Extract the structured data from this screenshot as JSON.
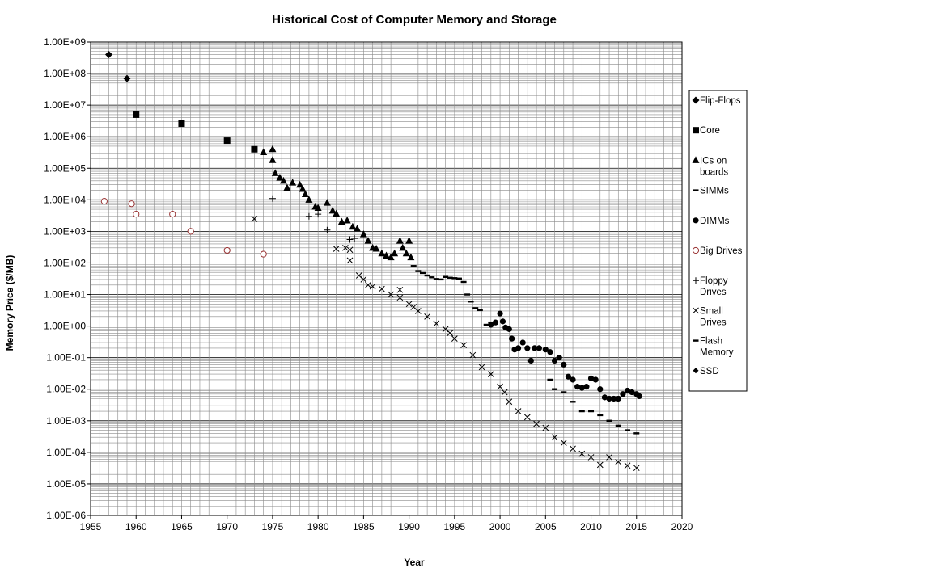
{
  "chart_data": {
    "type": "scatter",
    "title": "Historical Cost of Computer Memory and Storage",
    "xlabel": "Year",
    "ylabel": "Memory Price ($/MB)",
    "xlim": [
      1955,
      2020
    ],
    "ylim": [
      1e-06,
      1000000000.0
    ],
    "y_scale": "log",
    "grid": true,
    "legend_position": "right",
    "x_ticks": [
      "1955",
      "1960",
      "1965",
      "1970",
      "1975",
      "1980",
      "1985",
      "1990",
      "1995",
      "2000",
      "2005",
      "2010",
      "2015",
      "2020"
    ],
    "y_ticks": [
      "1.00E+09",
      "1.00E+08",
      "1.00E+07",
      "1.00E+06",
      "1.00E+05",
      "1.00E+04",
      "1.00E+03",
      "1.00E+02",
      "1.00E+01",
      "1.00E+00",
      "1.00E-01",
      "1.00E-02",
      "1.00E-03",
      "1.00E-04",
      "1.00E-05",
      "1.00E-06"
    ],
    "series": [
      {
        "name": "Flip-Flops",
        "marker": "diamond",
        "color": "#000000",
        "points": [
          [
            1957,
            400000000.0
          ],
          [
            1959,
            70000000.0
          ]
        ]
      },
      {
        "name": "Core",
        "marker": "square",
        "color": "#000000",
        "points": [
          [
            1960,
            5000000.0
          ],
          [
            1965,
            2600000.0
          ],
          [
            1970,
            750000.0
          ],
          [
            1973,
            400000.0
          ]
        ]
      },
      {
        "name": "ICs on boards",
        "marker": "triangle",
        "color": "#000000",
        "points": [
          [
            1974,
            320000.0
          ],
          [
            1975,
            400000.0
          ],
          [
            1975,
            180000.0
          ],
          [
            1975.3,
            70000.0
          ],
          [
            1975.8,
            50000.0
          ],
          [
            1976.2,
            40000.0
          ],
          [
            1976.6,
            24000.0
          ],
          [
            1977.2,
            35000.0
          ],
          [
            1978,
            30000.0
          ],
          [
            1978.3,
            22000.0
          ],
          [
            1978.6,
            15000.0
          ],
          [
            1979,
            10000.0
          ],
          [
            1979.7,
            6000.0
          ],
          [
            1980,
            5500.0
          ],
          [
            1981,
            8000.0
          ],
          [
            1981.6,
            4500.0
          ],
          [
            1982,
            3600.0
          ],
          [
            1982.6,
            2000.0
          ],
          [
            1983.2,
            2200.0
          ],
          [
            1983.8,
            1400.0
          ],
          [
            1984.3,
            1200.0
          ],
          [
            1985,
            800.0
          ],
          [
            1985.5,
            500.0
          ],
          [
            1986,
            300.0
          ],
          [
            1986.4,
            280.0
          ],
          [
            1987,
            200.0
          ],
          [
            1987.5,
            170.0
          ],
          [
            1988,
            150.0
          ],
          [
            1988.4,
            200.0
          ],
          [
            1989,
            500.0
          ],
          [
            1989.3,
            300.0
          ],
          [
            1989.7,
            200.0
          ],
          [
            1990,
            500.0
          ],
          [
            1990.2,
            150.0
          ]
        ]
      },
      {
        "name": "SIMMs",
        "marker": "dash",
        "color": "#000000",
        "points": [
          [
            1990.5,
            80
          ],
          [
            1991,
            55
          ],
          [
            1991.5,
            48
          ],
          [
            1992,
            40
          ],
          [
            1992.5,
            35
          ],
          [
            1993,
            31
          ],
          [
            1993.5,
            30
          ],
          [
            1994,
            36
          ],
          [
            1994.5,
            34
          ],
          [
            1995,
            33
          ],
          [
            1995.5,
            32
          ],
          [
            1996,
            25
          ],
          [
            1996.4,
            10
          ],
          [
            1996.8,
            6
          ],
          [
            1997.3,
            3.7
          ],
          [
            1997.8,
            3.2
          ],
          [
            1998.5,
            1.1
          ],
          [
            1999,
            1.3
          ]
        ]
      },
      {
        "name": "DIMMs",
        "marker": "circle",
        "color": "#000000",
        "points": [
          [
            1999,
            1.1
          ],
          [
            1999.5,
            1.3
          ],
          [
            2000,
            2.5
          ],
          [
            2000.3,
            1.4
          ],
          [
            2000.6,
            0.9
          ],
          [
            2001,
            0.8
          ],
          [
            2001.3,
            0.4
          ],
          [
            2001.6,
            0.18
          ],
          [
            2002,
            0.2
          ],
          [
            2002.5,
            0.3
          ],
          [
            2003,
            0.2
          ],
          [
            2003.4,
            0.08
          ],
          [
            2003.8,
            0.2
          ],
          [
            2004.3,
            0.2
          ],
          [
            2005,
            0.18
          ],
          [
            2005.5,
            0.15
          ],
          [
            2006,
            0.08
          ],
          [
            2006.5,
            0.1
          ],
          [
            2007,
            0.06
          ],
          [
            2007.5,
            0.025
          ],
          [
            2008,
            0.02
          ],
          [
            2008.5,
            0.012
          ],
          [
            2009,
            0.011
          ],
          [
            2009.5,
            0.012
          ],
          [
            2010,
            0.022
          ],
          [
            2010.5,
            0.02
          ],
          [
            2011,
            0.01
          ],
          [
            2011.5,
            0.0055
          ],
          [
            2012,
            0.005
          ],
          [
            2012.5,
            0.005
          ],
          [
            2013,
            0.005
          ],
          [
            2013.5,
            0.007
          ],
          [
            2014,
            0.009
          ],
          [
            2014.5,
            0.008
          ],
          [
            2015,
            0.007
          ],
          [
            2015.3,
            0.006
          ]
        ]
      },
      {
        "name": "Big Drives",
        "marker": "open-circle",
        "color": "#993333",
        "points": [
          [
            1956.5,
            9000
          ],
          [
            1959.5,
            7500
          ],
          [
            1960,
            3500
          ],
          [
            1964,
            3500
          ],
          [
            1966,
            1000
          ],
          [
            1970,
            250
          ],
          [
            1974,
            190
          ]
        ]
      },
      {
        "name": "Floppy Drives",
        "marker": "plus",
        "color": "#000000",
        "points": [
          [
            1975,
            11000
          ],
          [
            1979,
            3000
          ],
          [
            1980,
            3500
          ],
          [
            1981,
            1100
          ],
          [
            1983.5,
            550
          ],
          [
            1984,
            600
          ]
        ]
      },
      {
        "name": "Small Drives",
        "marker": "x",
        "color": "#000000",
        "points": [
          [
            1973,
            2500
          ],
          [
            1982,
            280
          ],
          [
            1983,
            300
          ],
          [
            1983.5,
            120
          ],
          [
            1983.5,
            260
          ],
          [
            1984.5,
            40
          ],
          [
            1985,
            30
          ],
          [
            1985.5,
            20
          ],
          [
            1986,
            18
          ],
          [
            1987,
            15
          ],
          [
            1988,
            10
          ],
          [
            1989,
            14
          ],
          [
            1989,
            8
          ],
          [
            1990,
            5
          ],
          [
            1990.5,
            4
          ],
          [
            1991,
            3
          ],
          [
            1992,
            2
          ],
          [
            1993,
            1.2
          ],
          [
            1994,
            0.8
          ],
          [
            1994.5,
            0.6
          ],
          [
            1995,
            0.4
          ],
          [
            1996,
            0.25
          ],
          [
            1997,
            0.12
          ],
          [
            1998,
            0.05
          ],
          [
            1999,
            0.03
          ],
          [
            2000,
            0.012
          ],
          [
            2000.5,
            0.008
          ],
          [
            2001,
            0.004
          ],
          [
            2002,
            0.002
          ],
          [
            2003,
            0.0013
          ],
          [
            2004,
            0.0008
          ],
          [
            2005,
            0.0006
          ],
          [
            2006,
            0.0003
          ],
          [
            2007,
            0.0002
          ],
          [
            2008,
            0.00013
          ],
          [
            2009,
            9e-05
          ],
          [
            2010,
            7e-05
          ],
          [
            2011,
            4e-05
          ],
          [
            2012,
            7e-05
          ],
          [
            2013,
            5e-05
          ],
          [
            2014,
            3.8e-05
          ],
          [
            2015,
            3.2e-05
          ]
        ]
      },
      {
        "name": "Flash Memory",
        "marker": "dash",
        "color": "#000000",
        "points": [
          [
            2005.5,
            0.02
          ],
          [
            2006,
            0.01
          ],
          [
            2007,
            0.008
          ],
          [
            2008,
            0.004
          ],
          [
            2009,
            0.002
          ],
          [
            2010,
            0.002
          ],
          [
            2011,
            0.0015
          ],
          [
            2012,
            0.001
          ],
          [
            2013,
            0.0007
          ],
          [
            2014,
            0.0005
          ],
          [
            2015,
            0.0004
          ]
        ]
      },
      {
        "name": "SSD",
        "marker": "small-diamond",
        "color": "#000000",
        "points": []
      }
    ]
  }
}
